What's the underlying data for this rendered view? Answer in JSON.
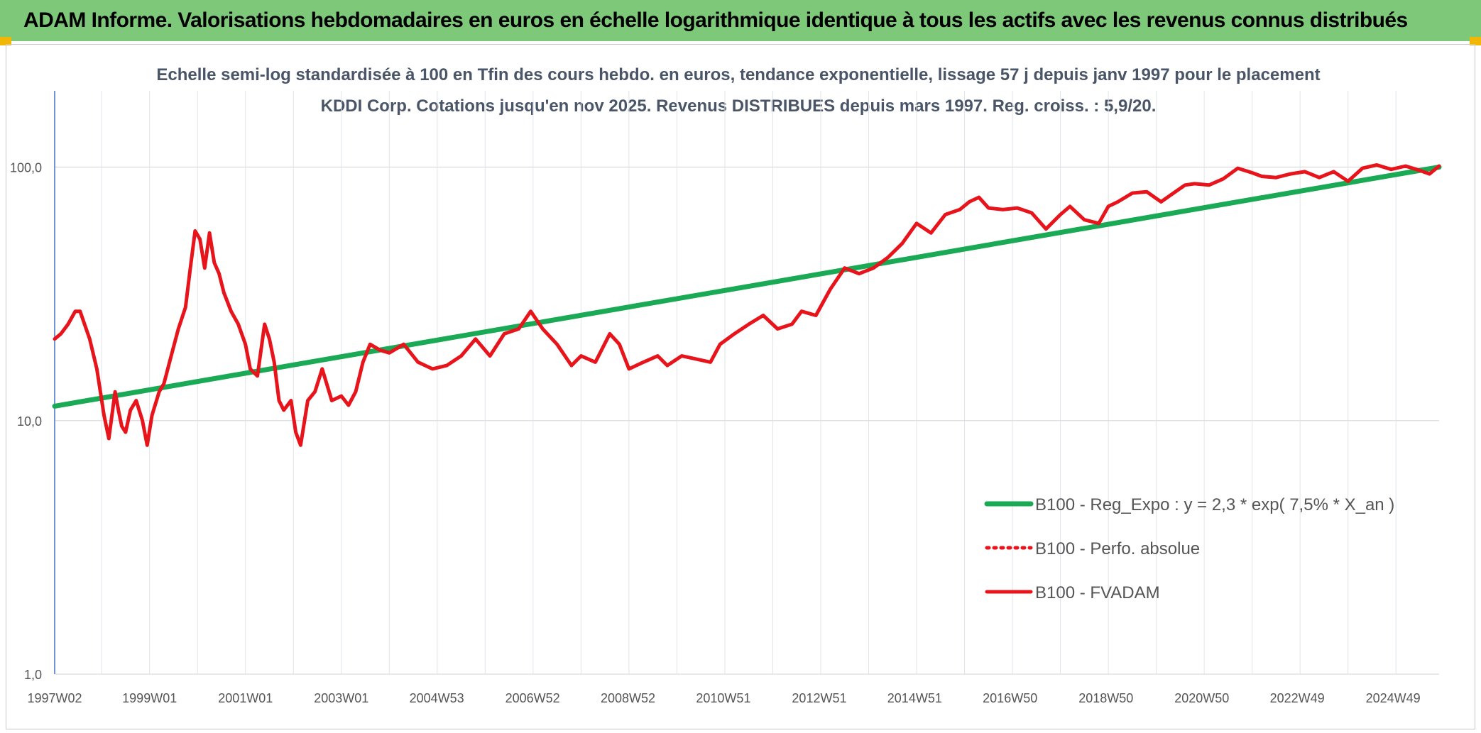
{
  "header": {
    "title": "ADAM Informe. Valorisations hebdomadaires en euros en échelle logarithmique identique à tous les actifs avec les revenus connus distribués"
  },
  "chart_data": {
    "type": "line",
    "title": "Echelle semi-log standardisée à 100 en Tfin des cours hebdo. en euros, tendance exponentielle, lissage 57 j depuis janv 1997 pour le placement KDDI Corp. Cotations jusqu'en nov 2025. Revenus DISTRIBUES depuis mars 1997. Reg. croiss. : 5,9/20.",
    "xlabel": "",
    "ylabel": "",
    "y_scale": "log",
    "ylim": [
      1,
      100
    ],
    "xlim": [
      1997.02,
      2025.9
    ],
    "grid": true,
    "legend_position": "bottom-right",
    "y_ticks": [
      {
        "value": 1,
        "label": "1,0"
      },
      {
        "value": 10,
        "label": "10,0"
      },
      {
        "value": 100,
        "label": "100,0"
      }
    ],
    "x_ticks": [
      {
        "value": 1997.02,
        "label": "1997W02"
      },
      {
        "value": 1999.0,
        "label": "1999W01"
      },
      {
        "value": 2001.0,
        "label": "2001W01"
      },
      {
        "value": 2003.0,
        "label": "2003W01"
      },
      {
        "value": 2004.99,
        "label": "2004W53"
      },
      {
        "value": 2006.99,
        "label": "2006W52"
      },
      {
        "value": 2008.98,
        "label": "2008W52"
      },
      {
        "value": 2010.97,
        "label": "2010W51"
      },
      {
        "value": 2012.97,
        "label": "2012W51"
      },
      {
        "value": 2014.96,
        "label": "2014W51"
      },
      {
        "value": 2016.95,
        "label": "2016W50"
      },
      {
        "value": 2018.95,
        "label": "2018W50"
      },
      {
        "value": 2020.95,
        "label": "2020W50"
      },
      {
        "value": 2022.94,
        "label": "2022W49"
      },
      {
        "value": 2024.94,
        "label": "2024W49"
      }
    ],
    "series": [
      {
        "name": "B100 - Reg_Expo : y = 2,3 * exp( 7,5% *  X_an )",
        "color": "#1aaa55",
        "style": "solid",
        "x": [
          1997.02,
          2025.9
        ],
        "y": [
          11.4,
          100
        ]
      },
      {
        "name": "B100 - Perfo. absolue",
        "color": "#e8141b",
        "style": "dotted",
        "x": [],
        "y": []
      },
      {
        "name": "B100 - FVADAM",
        "color": "#e8141b",
        "style": "solid",
        "x": [
          1997.02,
          1997.15,
          1997.3,
          1997.45,
          1997.55,
          1997.75,
          1997.9,
          1998.05,
          1998.15,
          1998.28,
          1998.35,
          1998.42,
          1998.5,
          1998.6,
          1998.72,
          1998.85,
          1998.95,
          1999.05,
          1999.2,
          1999.3,
          1999.45,
          1999.6,
          1999.75,
          1999.85,
          1999.95,
          2000.05,
          2000.15,
          2000.25,
          2000.35,
          2000.45,
          2000.55,
          2000.7,
          2000.85,
          2001.0,
          2001.1,
          2001.25,
          2001.4,
          2001.5,
          2001.6,
          2001.7,
          2001.8,
          2001.95,
          2002.05,
          2002.15,
          2002.3,
          2002.45,
          2002.6,
          2002.8,
          2003.0,
          2003.15,
          2003.3,
          2003.45,
          2003.6,
          2003.8,
          2004.0,
          2004.3,
          2004.6,
          2004.9,
          2005.2,
          2005.5,
          2005.8,
          2006.1,
          2006.4,
          2006.7,
          2006.95,
          2007.2,
          2007.5,
          2007.8,
          2008.0,
          2008.3,
          2008.6,
          2008.8,
          2009.0,
          2009.3,
          2009.6,
          2009.8,
          2010.1,
          2010.4,
          2010.7,
          2010.9,
          2011.2,
          2011.5,
          2011.8,
          2012.1,
          2012.4,
          2012.6,
          2012.9,
          2013.2,
          2013.5,
          2013.8,
          2014.1,
          2014.4,
          2014.7,
          2015.0,
          2015.3,
          2015.6,
          2015.9,
          2016.1,
          2016.3,
          2016.5,
          2016.8,
          2017.1,
          2017.4,
          2017.7,
          2018.0,
          2018.2,
          2018.5,
          2018.8,
          2019.0,
          2019.2,
          2019.5,
          2019.8,
          2020.1,
          2020.4,
          2020.6,
          2020.8,
          2021.1,
          2021.4,
          2021.7,
          2022.0,
          2022.2,
          2022.5,
          2022.8,
          2023.1,
          2023.4,
          2023.7,
          2024.0,
          2024.3,
          2024.6,
          2024.9,
          2025.2,
          2025.5,
          2025.7,
          2025.9
        ],
        "y": [
          21,
          22,
          24,
          27,
          27,
          21,
          16,
          10.5,
          8.5,
          13,
          11,
          9.5,
          9,
          11,
          12,
          10,
          8,
          10.5,
          13,
          14,
          18,
          23,
          28,
          40,
          56,
          52,
          40,
          55,
          42,
          38,
          32,
          27,
          24,
          20,
          16,
          15,
          24,
          21,
          17,
          12,
          11,
          12,
          9,
          8,
          12,
          13,
          16,
          12,
          12.5,
          11.5,
          13,
          17,
          20,
          19,
          18.5,
          20,
          17,
          16,
          16.5,
          18,
          21,
          18,
          22,
          23,
          27,
          23,
          20,
          16.5,
          18,
          17,
          22,
          20,
          16,
          17,
          18,
          16.5,
          18,
          17.5,
          17,
          20,
          22,
          24,
          26,
          23,
          24,
          27,
          26,
          33,
          40,
          38,
          40,
          44,
          50,
          60,
          55,
          65,
          68,
          73,
          76,
          69,
          68,
          69,
          66,
          57,
          65,
          70,
          62,
          60,
          70,
          73,
          79,
          80,
          73,
          80,
          85,
          86,
          85,
          90,
          99,
          95,
          92,
          91,
          94,
          96,
          91,
          96,
          88,
          99,
          102,
          98,
          101,
          97,
          94,
          101
        ]
      }
    ]
  }
}
